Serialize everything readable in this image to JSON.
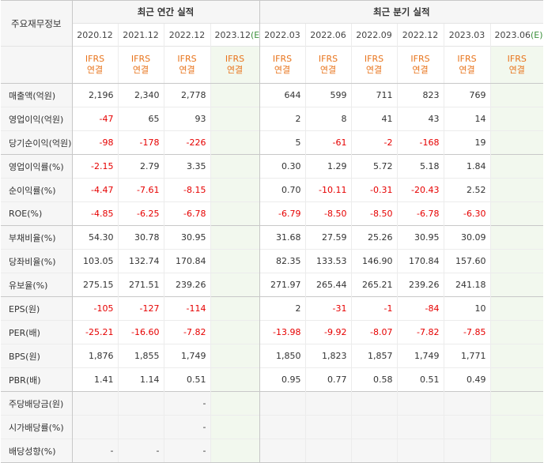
{
  "table_title": "주요재무정보",
  "groups": {
    "annual": "최근 연간 실적",
    "quarterly": "최근 분기 실적"
  },
  "periods": {
    "annual": [
      {
        "label": "2020.12",
        "estimate": false
      },
      {
        "label": "2021.12",
        "estimate": false
      },
      {
        "label": "2022.12",
        "estimate": false
      },
      {
        "label": "2023.12",
        "estimate": true
      }
    ],
    "quarterly": [
      {
        "label": "2022.03",
        "estimate": false
      },
      {
        "label": "2022.06",
        "estimate": false
      },
      {
        "label": "2022.09",
        "estimate": false
      },
      {
        "label": "2022.12",
        "estimate": false
      },
      {
        "label": "2023.03",
        "estimate": false
      },
      {
        "label": "2023.06",
        "estimate": true
      }
    ]
  },
  "estimate_mark": "(E)",
  "standard": {
    "line1": "IFRS",
    "line2": "연결"
  },
  "rows": [
    {
      "label": "매출액(억원)",
      "annual": [
        "2,196",
        "2,340",
        "2,778",
        ""
      ],
      "quarterly": [
        "644",
        "599",
        "711",
        "823",
        "769",
        ""
      ]
    },
    {
      "label": "영업이익(억원)",
      "annual": [
        "-47",
        "65",
        "93",
        ""
      ],
      "quarterly": [
        "2",
        "8",
        "41",
        "43",
        "14",
        ""
      ]
    },
    {
      "label": "당기순이익(억원)",
      "annual": [
        "-98",
        "-178",
        "-226",
        ""
      ],
      "quarterly": [
        "5",
        "-61",
        "-2",
        "-168",
        "19",
        ""
      ]
    },
    {
      "label": "영업이익률(%)",
      "annual": [
        "-2.15",
        "2.79",
        "3.35",
        ""
      ],
      "quarterly": [
        "0.30",
        "1.29",
        "5.72",
        "5.18",
        "1.84",
        ""
      ],
      "group_start": true
    },
    {
      "label": "순이익률(%)",
      "annual": [
        "-4.47",
        "-7.61",
        "-8.15",
        ""
      ],
      "quarterly": [
        "0.70",
        "-10.11",
        "-0.31",
        "-20.43",
        "2.52",
        ""
      ]
    },
    {
      "label": "ROE(%)",
      "annual": [
        "-4.85",
        "-6.25",
        "-6.78",
        ""
      ],
      "quarterly": [
        "-6.79",
        "-8.50",
        "-8.50",
        "-6.78",
        "-6.30",
        ""
      ]
    },
    {
      "label": "부채비율(%)",
      "annual": [
        "54.30",
        "30.78",
        "30.95",
        ""
      ],
      "quarterly": [
        "31.68",
        "27.59",
        "25.26",
        "30.95",
        "30.09",
        ""
      ],
      "group_start": true
    },
    {
      "label": "당좌비율(%)",
      "annual": [
        "103.05",
        "132.74",
        "170.84",
        ""
      ],
      "quarterly": [
        "82.35",
        "133.53",
        "146.90",
        "170.84",
        "157.60",
        ""
      ]
    },
    {
      "label": "유보율(%)",
      "annual": [
        "275.15",
        "271.51",
        "239.26",
        ""
      ],
      "quarterly": [
        "271.97",
        "265.44",
        "265.21",
        "239.26",
        "241.18",
        ""
      ]
    },
    {
      "label": "EPS(원)",
      "annual": [
        "-105",
        "-127",
        "-114",
        ""
      ],
      "quarterly": [
        "2",
        "-31",
        "-1",
        "-84",
        "10",
        ""
      ],
      "group_start": true
    },
    {
      "label": "PER(배)",
      "annual": [
        "-25.21",
        "-16.60",
        "-7.82",
        ""
      ],
      "quarterly": [
        "-13.98",
        "-9.92",
        "-8.07",
        "-7.82",
        "-7.85",
        ""
      ]
    },
    {
      "label": "BPS(원)",
      "annual": [
        "1,876",
        "1,855",
        "1,749",
        ""
      ],
      "quarterly": [
        "1,850",
        "1,823",
        "1,857",
        "1,749",
        "1,771",
        ""
      ]
    },
    {
      "label": "PBR(배)",
      "annual": [
        "1.41",
        "1.14",
        "0.51",
        ""
      ],
      "quarterly": [
        "0.95",
        "0.77",
        "0.58",
        "0.51",
        "0.49",
        ""
      ]
    },
    {
      "label": "주당배당금(원)",
      "annual": [
        "",
        "",
        "-",
        ""
      ],
      "quarterly": [
        "",
        "",
        "",
        "",
        "",
        ""
      ],
      "group_start": true,
      "blank": true
    },
    {
      "label": "시가배당률(%)",
      "annual": [
        "",
        "",
        "-",
        ""
      ],
      "quarterly": [
        "",
        "",
        "",
        "",
        "",
        ""
      ],
      "blank": true
    },
    {
      "label": "배당성향(%)",
      "annual": [
        "-",
        "-",
        "-",
        ""
      ],
      "quarterly": [
        "",
        "",
        "",
        "",
        "",
        ""
      ],
      "blank": true
    }
  ]
}
